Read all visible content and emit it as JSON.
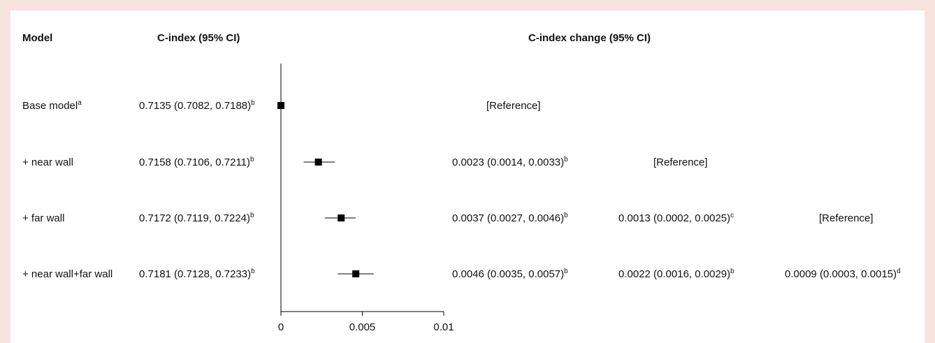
{
  "headers": {
    "model": "Model",
    "cindex": "C-index (95% CI)",
    "change": "C-index change (95% CI)"
  },
  "reference_label": "[Reference]",
  "rows": [
    {
      "model": "Base model",
      "model_sup": "a",
      "cindex": "0.7135 (0.7082, 0.7188)",
      "cindex_sup": "b",
      "changes": [
        {
          "text": "[Reference]",
          "sup": ""
        }
      ]
    },
    {
      "model": "+ near wall",
      "model_sup": "",
      "cindex": "0.7158 (0.7106, 0.7211)",
      "cindex_sup": "b",
      "changes": [
        {
          "text": "0.0023 (0.0014, 0.0033)",
          "sup": "b"
        },
        {
          "text": "[Reference]",
          "sup": ""
        }
      ]
    },
    {
      "model": "+ far wall",
      "model_sup": "",
      "cindex": "0.7172 (0.7119, 0.7224)",
      "cindex_sup": "b",
      "changes": [
        {
          "text": "0.0037 (0.0027, 0.0046)",
          "sup": "b"
        },
        {
          "text": "0.0013 (0.0002, 0.0025)",
          "sup": "c"
        },
        {
          "text": "[Reference]",
          "sup": ""
        }
      ]
    },
    {
      "model": "+ near wall+far wall",
      "model_sup": "",
      "cindex": "0.7181 (0.7128, 0.7233)",
      "cindex_sup": "b",
      "changes": [
        {
          "text": "0.0046 (0.0035, 0.0057)",
          "sup": "b"
        },
        {
          "text": "0.0022 (0.0016, 0.0029)",
          "sup": "b"
        },
        {
          "text": "0.0009 (0.0003, 0.0015)",
          "sup": "d"
        }
      ]
    }
  ],
  "chart_data": {
    "type": "scatter",
    "subtype": "forest-plot",
    "title": "",
    "xlabel": "",
    "ylabel": "",
    "categories": [
      "Base model",
      "+ near wall",
      "+ far wall",
      "+ near wall+far wall"
    ],
    "points": [
      {
        "label": "Base model",
        "estimate": 0.0,
        "lower": 0.0,
        "upper": 0.0
      },
      {
        "label": "+ near wall",
        "estimate": 0.0023,
        "lower": 0.0014,
        "upper": 0.0033
      },
      {
        "label": "+ far wall",
        "estimate": 0.0037,
        "lower": 0.0027,
        "upper": 0.0046
      },
      {
        "label": "+ near wall+far wall",
        "estimate": 0.0046,
        "lower": 0.0035,
        "upper": 0.0057
      }
    ],
    "xlim": [
      0,
      0.01
    ],
    "xticks": [
      0,
      0.005,
      0.01
    ],
    "xtick_labels": [
      "0",
      "0.005",
      "0.01"
    ],
    "grid": false,
    "marker": "square",
    "color": "#000000"
  }
}
